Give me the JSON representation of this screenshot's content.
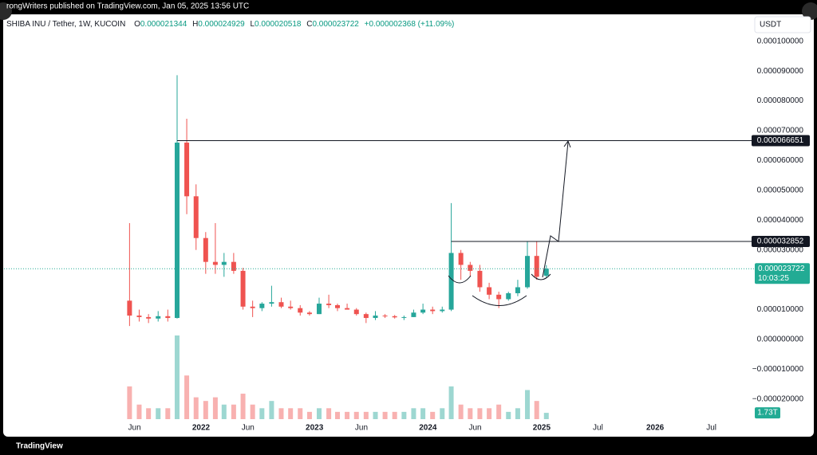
{
  "top_bar": {
    "text": "rongWriters published on TradingView.com, Jan 05, 2025 13:56 UTC"
  },
  "chart_data": {
    "type": "candlestick",
    "title": "SHIBA INU / Tether, 1W, KUCOIN",
    "ohlc_legend": [
      {
        "key": "O",
        "value": "0.000021344"
      },
      {
        "key": "H",
        "value": "0.000024929"
      },
      {
        "key": "L",
        "value": "0.000020518"
      },
      {
        "key": "C",
        "value": "0.000023722"
      }
    ],
    "change": "+0.000002368 (+11.09%)",
    "currency": "USDT",
    "x": [
      "2021-05",
      "2021-06",
      "2021-07",
      "2021-08",
      "2021-09",
      "2021-10",
      "2021-11",
      "2021-12",
      "2022-01",
      "2022-02",
      "2022-03",
      "2022-04",
      "2022-05",
      "2022-06",
      "2022-07",
      "2022-08",
      "2022-09",
      "2022-10",
      "2022-11",
      "2022-12",
      "2023-01",
      "2023-02",
      "2023-03",
      "2023-04",
      "2023-05",
      "2023-06",
      "2023-07",
      "2023-08",
      "2023-09",
      "2023-10",
      "2023-11",
      "2023-12",
      "2024-01",
      "2024-02",
      "2024-03",
      "2024-04",
      "2024-05",
      "2024-06",
      "2024-07",
      "2024-08",
      "2024-09",
      "2024-10",
      "2024-11",
      "2024-12",
      "2025-01"
    ],
    "open": [
      1.3e-05,
      8e-06,
      7.5e-06,
      7e-06,
      7.8e-06,
      7.2e-06,
      6.6e-05,
      4.8e-05,
      3.4e-05,
      2.6e-05,
      2.5e-05,
      2.6e-05,
      2.3e-05,
      1.1e-05,
      1.05e-05,
      1.2e-05,
      1.25e-05,
      1.1e-05,
      1.05e-05,
      9e-06,
      8.5e-06,
      1.2e-05,
      1.15e-05,
      1.05e-05,
      1e-05,
      8.5e-06,
      7.2e-06,
      8e-06,
      7.8e-06,
      7.4e-06,
      7.5e-06,
      9e-06,
      1e-05,
      9.5e-06,
      1e-05,
      2.9e-05,
      2.5e-05,
      2.3e-05,
      1.75e-05,
      1.5e-05,
      1.35e-05,
      1.55e-05,
      1.75e-05,
      2.8e-05,
      2.1344e-05
    ],
    "high": [
      3.9e-05,
      1e-05,
      8.5e-06,
      9.5e-06,
      1e-05,
      8.86e-05,
      7.4e-05,
      5.2e-05,
      3.6e-05,
      3.9e-05,
      2.9e-05,
      2.9e-05,
      2.4e-05,
      1.3e-05,
      1.25e-05,
      1.8e-05,
      1.4e-05,
      1.3e-05,
      1.15e-05,
      9.5e-06,
      1.4e-05,
      1.5e-05,
      1.2e-05,
      1.2e-05,
      1.05e-05,
      9e-06,
      9.5e-06,
      8.5e-06,
      8.2e-06,
      8e-06,
      1e-05,
      1.2e-05,
      1.1e-05,
      1.1e-05,
      4.57e-05,
      3e-05,
      2.6e-05,
      2.5e-05,
      1.9e-05,
      1.6e-05,
      1.6e-05,
      2e-05,
      3.3e-05,
      3.3e-05,
      2.4929e-05
    ],
    "low": [
      4.5e-06,
      6e-06,
      5.5e-06,
      6e-06,
      6e-06,
      7e-06,
      4.2e-05,
      3e-05,
      2.2e-05,
      2.2e-05,
      2.1e-05,
      2.2e-05,
      1e-05,
      7.5e-06,
      9.5e-06,
      1.1e-05,
      1.05e-05,
      1e-05,
      8e-06,
      8e-06,
      8.5e-06,
      1.05e-05,
      9.5e-06,
      1e-05,
      8e-06,
      5.5e-06,
      6.5e-06,
      7.2e-06,
      7e-06,
      6.5e-06,
      7.5e-06,
      8.5e-06,
      8.5e-06,
      9e-06,
      9.5e-06,
      2e-05,
      2.1e-05,
      1.6e-05,
      1.35e-05,
      1.05e-05,
      1.3e-05,
      1.45e-05,
      1.7e-05,
      2e-05,
      2.0518e-05
    ],
    "close": [
      8e-06,
      7.5e-06,
      7e-06,
      7.8e-06,
      7.2e-06,
      6.6e-05,
      4.8e-05,
      3.4e-05,
      2.6e-05,
      2.5e-05,
      2.6e-05,
      2.3e-05,
      1.1e-05,
      1.05e-05,
      1.2e-05,
      1.25e-05,
      1.1e-05,
      1.05e-05,
      9e-06,
      8.5e-06,
      1.2e-05,
      1.15e-05,
      1.05e-05,
      1e-05,
      8.5e-06,
      7.2e-06,
      8e-06,
      7.8e-06,
      7.4e-06,
      7.5e-06,
      9e-06,
      1e-05,
      9.5e-06,
      1e-05,
      2.9e-05,
      2.5e-05,
      2.3e-05,
      1.75e-05,
      1.5e-05,
      1.35e-05,
      1.55e-05,
      1.75e-05,
      2.8e-05,
      2.1e-05,
      2.3722e-05
    ],
    "volume": [
      9,
      4,
      3,
      3,
      3,
      23,
      12,
      6,
      5,
      6,
      4,
      4,
      7,
      4,
      3,
      5,
      3,
      3,
      3,
      2,
      3,
      3,
      2,
      2,
      2,
      2,
      2,
      2,
      2,
      2,
      3,
      3,
      2,
      3,
      9,
      4,
      3,
      3,
      3,
      4,
      2,
      3,
      8,
      5,
      1.73
    ],
    "volume_last_label": "1.73T",
    "up_color": "#26a69a",
    "down_color": "#ef5350",
    "ylim": [
      -3.26e-05,
      0.000109
    ],
    "yticks": [
      {
        "value": 0.0001,
        "label": "0.000100000"
      },
      {
        "value": 9e-05,
        "label": "0.000090000"
      },
      {
        "value": 8e-05,
        "label": "0.000080000"
      },
      {
        "value": 7e-05,
        "label": "0.000070000"
      },
      {
        "value": 6e-05,
        "label": "0.000060000"
      },
      {
        "value": 5e-05,
        "label": "0.000050000"
      },
      {
        "value": 4e-05,
        "label": "0.000040000"
      },
      {
        "value": 3e-05,
        "label": "0.000030000"
      },
      {
        "value": 2e-05,
        "label": "0.000020000"
      },
      {
        "value": 1e-05,
        "label": "0.000010000"
      },
      {
        "value": 0,
        "label": "0.000000000"
      },
      {
        "value": -1e-05,
        "label": "−0.000010000"
      },
      {
        "value": -2e-05,
        "label": "−0.000020000"
      }
    ],
    "xlim": [
      "2020-04-07",
      "2026-11-15"
    ],
    "xticks": [
      {
        "value": "2021-06",
        "label": "Jun"
      },
      {
        "value": "2022",
        "label": "2022"
      },
      {
        "value": "2022-06",
        "label": "Jun"
      },
      {
        "value": "2023",
        "label": "2023"
      },
      {
        "value": "2023-06",
        "label": "Jun"
      },
      {
        "value": "2024",
        "label": "2024"
      },
      {
        "value": "2024-06",
        "label": "Jun"
      },
      {
        "value": "2025",
        "label": "2025"
      },
      {
        "value": "2025-07",
        "label": "Jul"
      },
      {
        "value": "2026",
        "label": "2026"
      },
      {
        "value": "2026-07",
        "label": "Jul"
      }
    ],
    "grid": false,
    "price_lines": [
      {
        "value": 6.6651e-05,
        "label": "0.000066651"
      },
      {
        "value": 3.2852e-05,
        "label": "0.000032852"
      }
    ],
    "last_price": {
      "value": 2.3722e-05,
      "label": "0.000023722",
      "countdown": "10:03:25",
      "color": "#22ab94"
    }
  },
  "footer": {
    "brand": "TradingView"
  }
}
